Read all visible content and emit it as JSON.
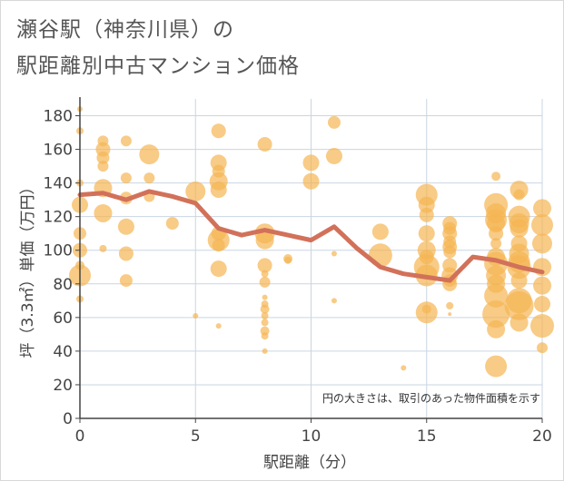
{
  "page": {
    "title_line1": "瀬谷駅（神奈川県）の",
    "title_line2": "駅距離別中古マンション価格"
  },
  "colors": {
    "bubble": "#f5b553",
    "line": "#d2715a",
    "grid": "#c9d6e2",
    "axis": "#444444"
  },
  "chart_data": {
    "type": "scatter",
    "xlabel": "駅距離（分）",
    "ylabel": "坪（3.3㎡）単価（万円）",
    "xlim": [
      0,
      20
    ],
    "ylim": [
      0,
      190
    ],
    "xticks": [
      0,
      5,
      10,
      15,
      20
    ],
    "yticks": [
      0,
      20,
      40,
      60,
      80,
      100,
      120,
      140,
      160,
      180
    ],
    "annotation": "円の大きさは、取引のあった物件面積を示す",
    "bubbles": [
      {
        "x": 0,
        "y": 184,
        "s": 3
      },
      {
        "x": 0,
        "y": 171,
        "s": 4
      },
      {
        "x": 0,
        "y": 140,
        "s": 4
      },
      {
        "x": 0,
        "y": 127,
        "s": 9
      },
      {
        "x": 0,
        "y": 110,
        "s": 7
      },
      {
        "x": 0,
        "y": 100,
        "s": 8
      },
      {
        "x": 0,
        "y": 91,
        "s": 5
      },
      {
        "x": 0,
        "y": 85,
        "s": 12
      },
      {
        "x": 0,
        "y": 71,
        "s": 4
      },
      {
        "x": 1,
        "y": 165,
        "s": 6
      },
      {
        "x": 1,
        "y": 160,
        "s": 8
      },
      {
        "x": 1,
        "y": 155,
        "s": 7
      },
      {
        "x": 1,
        "y": 150,
        "s": 6
      },
      {
        "x": 1,
        "y": 137,
        "s": 10
      },
      {
        "x": 1,
        "y": 122,
        "s": 10
      },
      {
        "x": 1,
        "y": 101,
        "s": 4
      },
      {
        "x": 2,
        "y": 165,
        "s": 6
      },
      {
        "x": 2,
        "y": 143,
        "s": 6
      },
      {
        "x": 2,
        "y": 131,
        "s": 7
      },
      {
        "x": 2,
        "y": 114,
        "s": 9
      },
      {
        "x": 2,
        "y": 98,
        "s": 8
      },
      {
        "x": 2,
        "y": 82,
        "s": 7
      },
      {
        "x": 3,
        "y": 157,
        "s": 11
      },
      {
        "x": 3,
        "y": 143,
        "s": 6
      },
      {
        "x": 3,
        "y": 132,
        "s": 6
      },
      {
        "x": 4,
        "y": 116,
        "s": 7
      },
      {
        "x": 5,
        "y": 135,
        "s": 11
      },
      {
        "x": 5,
        "y": 61,
        "s": 3
      },
      {
        "x": 6,
        "y": 171,
        "s": 8
      },
      {
        "x": 6,
        "y": 152,
        "s": 9
      },
      {
        "x": 6,
        "y": 147,
        "s": 7
      },
      {
        "x": 6,
        "y": 141,
        "s": 10
      },
      {
        "x": 6,
        "y": 136,
        "s": 9
      },
      {
        "x": 6,
        "y": 110,
        "s": 8
      },
      {
        "x": 6,
        "y": 106,
        "s": 12
      },
      {
        "x": 6,
        "y": 103,
        "s": 7
      },
      {
        "x": 6,
        "y": 89,
        "s": 9
      },
      {
        "x": 6,
        "y": 55,
        "s": 3
      },
      {
        "x": 8,
        "y": 163,
        "s": 8
      },
      {
        "x": 8,
        "y": 110,
        "s": 11
      },
      {
        "x": 8,
        "y": 106,
        "s": 10
      },
      {
        "x": 8,
        "y": 91,
        "s": 8
      },
      {
        "x": 8,
        "y": 86,
        "s": 4
      },
      {
        "x": 8,
        "y": 81,
        "s": 6
      },
      {
        "x": 8,
        "y": 72,
        "s": 3
      },
      {
        "x": 8,
        "y": 68,
        "s": 4
      },
      {
        "x": 8,
        "y": 65,
        "s": 5
      },
      {
        "x": 8,
        "y": 61,
        "s": 4
      },
      {
        "x": 8,
        "y": 57,
        "s": 4
      },
      {
        "x": 8,
        "y": 52,
        "s": 5
      },
      {
        "x": 8,
        "y": 49,
        "s": 4
      },
      {
        "x": 8,
        "y": 40,
        "s": 3
      },
      {
        "x": 9,
        "y": 95,
        "s": 5
      },
      {
        "x": 9,
        "y": 94,
        "s": 4
      },
      {
        "x": 10,
        "y": 152,
        "s": 9
      },
      {
        "x": 10,
        "y": 141,
        "s": 9
      },
      {
        "x": 11,
        "y": 176,
        "s": 7
      },
      {
        "x": 11,
        "y": 156,
        "s": 9
      },
      {
        "x": 11,
        "y": 98,
        "s": 3
      },
      {
        "x": 11,
        "y": 70,
        "s": 3
      },
      {
        "x": 13,
        "y": 111,
        "s": 9
      },
      {
        "x": 13,
        "y": 97,
        "s": 13
      },
      {
        "x": 14,
        "y": 30,
        "s": 3
      },
      {
        "x": 15,
        "y": 133,
        "s": 12
      },
      {
        "x": 15,
        "y": 127,
        "s": 9
      },
      {
        "x": 15,
        "y": 121,
        "s": 8
      },
      {
        "x": 15,
        "y": 110,
        "s": 9
      },
      {
        "x": 15,
        "y": 100,
        "s": 10
      },
      {
        "x": 15,
        "y": 96,
        "s": 8
      },
      {
        "x": 15,
        "y": 90,
        "s": 14
      },
      {
        "x": 15,
        "y": 85,
        "s": 12
      },
      {
        "x": 15,
        "y": 65,
        "s": 5
      },
      {
        "x": 15,
        "y": 63,
        "s": 12
      },
      {
        "x": 16,
        "y": 116,
        "s": 8
      },
      {
        "x": 16,
        "y": 113,
        "s": 7
      },
      {
        "x": 16,
        "y": 110,
        "s": 8
      },
      {
        "x": 16,
        "y": 105,
        "s": 7
      },
      {
        "x": 16,
        "y": 102,
        "s": 8
      },
      {
        "x": 16,
        "y": 99,
        "s": 7
      },
      {
        "x": 16,
        "y": 91,
        "s": 8
      },
      {
        "x": 16,
        "y": 85,
        "s": 9
      },
      {
        "x": 16,
        "y": 82,
        "s": 7
      },
      {
        "x": 16,
        "y": 80,
        "s": 8
      },
      {
        "x": 16,
        "y": 67,
        "s": 4
      },
      {
        "x": 16,
        "y": 62,
        "s": 2
      },
      {
        "x": 18,
        "y": 144,
        "s": 5
      },
      {
        "x": 18,
        "y": 127,
        "s": 13
      },
      {
        "x": 18,
        "y": 122,
        "s": 11
      },
      {
        "x": 18,
        "y": 118,
        "s": 12
      },
      {
        "x": 18,
        "y": 116,
        "s": 10
      },
      {
        "x": 18,
        "y": 110,
        "s": 8
      },
      {
        "x": 18,
        "y": 104,
        "s": 6
      },
      {
        "x": 18,
        "y": 96,
        "s": 10
      },
      {
        "x": 18,
        "y": 92,
        "s": 13
      },
      {
        "x": 18,
        "y": 85,
        "s": 11
      },
      {
        "x": 18,
        "y": 80,
        "s": 10
      },
      {
        "x": 18,
        "y": 73,
        "s": 13
      },
      {
        "x": 18,
        "y": 62,
        "s": 15
      },
      {
        "x": 18,
        "y": 53,
        "s": 10
      },
      {
        "x": 18,
        "y": 31,
        "s": 12
      },
      {
        "x": 19,
        "y": 136,
        "s": 10
      },
      {
        "x": 19,
        "y": 133,
        "s": 6
      },
      {
        "x": 19,
        "y": 120,
        "s": 12
      },
      {
        "x": 19,
        "y": 116,
        "s": 11
      },
      {
        "x": 19,
        "y": 113,
        "s": 10
      },
      {
        "x": 19,
        "y": 104,
        "s": 9
      },
      {
        "x": 19,
        "y": 98,
        "s": 11
      },
      {
        "x": 19,
        "y": 93,
        "s": 12
      },
      {
        "x": 19,
        "y": 90,
        "s": 13
      },
      {
        "x": 19,
        "y": 82,
        "s": 9
      },
      {
        "x": 19,
        "y": 70,
        "s": 14
      },
      {
        "x": 19,
        "y": 67,
        "s": 16
      },
      {
        "x": 19,
        "y": 57,
        "s": 10
      },
      {
        "x": 20,
        "y": 125,
        "s": 10
      },
      {
        "x": 20,
        "y": 115,
        "s": 12
      },
      {
        "x": 20,
        "y": 104,
        "s": 11
      },
      {
        "x": 20,
        "y": 90,
        "s": 10
      },
      {
        "x": 20,
        "y": 79,
        "s": 10
      },
      {
        "x": 20,
        "y": 68,
        "s": 9
      },
      {
        "x": 20,
        "y": 55,
        "s": 13
      },
      {
        "x": 20,
        "y": 42,
        "s": 6
      }
    ],
    "trend": {
      "x": [
        0,
        1,
        2,
        3,
        4,
        5,
        6,
        7,
        8,
        9,
        10,
        11,
        12,
        13,
        14,
        15,
        16,
        17,
        18,
        19,
        20
      ],
      "y": [
        133,
        134,
        130,
        135,
        132,
        128,
        113,
        109,
        112,
        109,
        106,
        114,
        101,
        90,
        86,
        84,
        82,
        96,
        94,
        90,
        87
      ]
    }
  }
}
